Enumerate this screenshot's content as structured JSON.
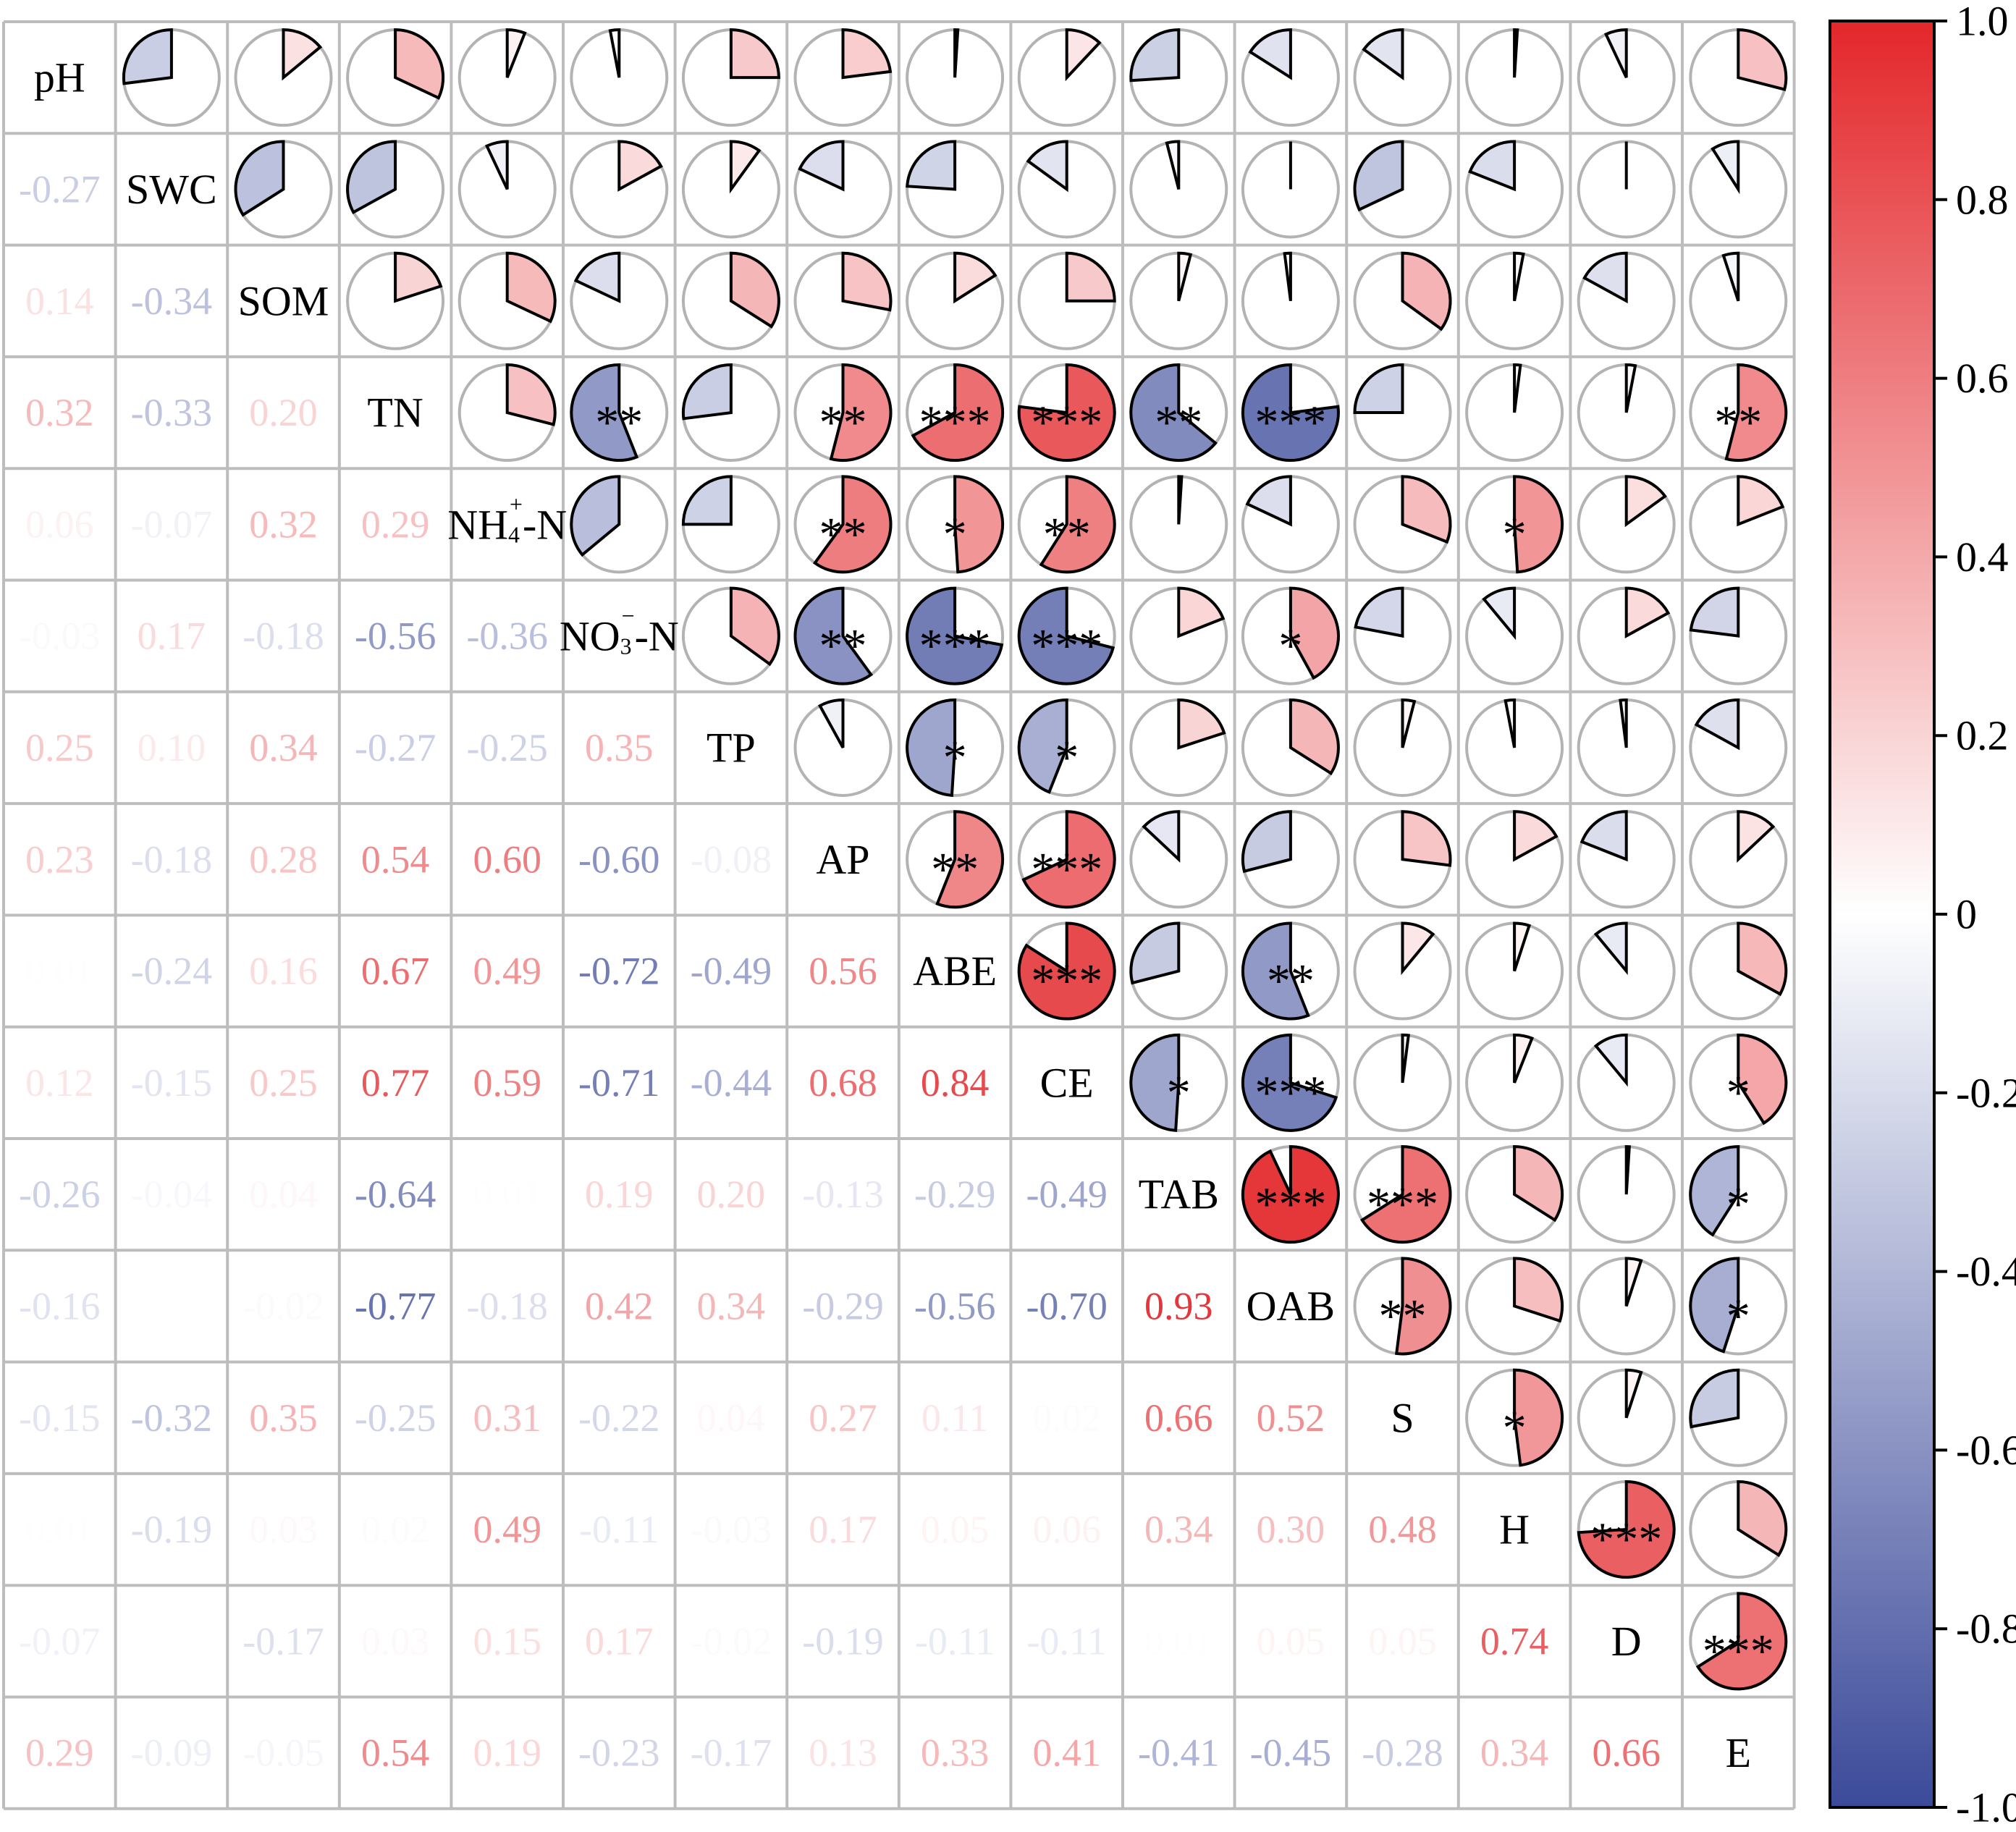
{
  "chart_data": {
    "type": "heatmap",
    "variables": [
      "pH",
      "SWC",
      "SOM",
      "TN",
      "NH4+-N",
      "NO3--N",
      "TP",
      "AP",
      "ABE",
      "CE",
      "TAB",
      "OAB",
      "S",
      "H",
      "D",
      "E"
    ],
    "correlation_matrix": [
      [
        null,
        -0.27,
        0.14,
        0.32,
        0.06,
        -0.03,
        0.25,
        0.23,
        0.01,
        0.12,
        -0.26,
        -0.16,
        -0.15,
        0.01,
        -0.07,
        0.29
      ],
      [
        -0.27,
        null,
        -0.34,
        -0.33,
        -0.07,
        0.17,
        0.1,
        -0.18,
        -0.24,
        -0.15,
        -0.04,
        0.0,
        -0.32,
        -0.19,
        0.0,
        -0.09
      ],
      [
        0.14,
        -0.34,
        null,
        0.2,
        0.32,
        -0.18,
        0.34,
        0.28,
        0.16,
        0.25,
        0.04,
        -0.02,
        0.35,
        0.03,
        -0.17,
        -0.05
      ],
      [
        0.32,
        -0.33,
        0.2,
        null,
        0.29,
        -0.56,
        -0.27,
        0.54,
        0.67,
        0.77,
        -0.64,
        -0.77,
        -0.25,
        0.02,
        0.03,
        0.54
      ],
      [
        0.06,
        -0.07,
        0.32,
        0.29,
        null,
        -0.36,
        -0.25,
        0.6,
        0.49,
        0.59,
        0.01,
        -0.18,
        0.31,
        0.49,
        0.15,
        0.19
      ],
      [
        -0.03,
        0.17,
        -0.18,
        -0.56,
        -0.36,
        null,
        0.35,
        -0.6,
        -0.72,
        -0.71,
        0.19,
        0.42,
        -0.22,
        -0.11,
        0.17,
        -0.23
      ],
      [
        0.25,
        0.1,
        0.34,
        -0.27,
        -0.25,
        0.35,
        null,
        -0.08,
        -0.49,
        -0.44,
        0.2,
        0.34,
        0.04,
        -0.03,
        -0.02,
        -0.17
      ],
      [
        0.23,
        -0.18,
        0.28,
        0.54,
        0.6,
        -0.6,
        -0.08,
        null,
        0.56,
        0.68,
        -0.13,
        -0.29,
        0.27,
        0.17,
        -0.19,
        0.13
      ],
      [
        0.01,
        -0.24,
        0.16,
        0.67,
        0.49,
        -0.72,
        -0.49,
        0.56,
        null,
        0.84,
        -0.29,
        -0.56,
        0.11,
        0.05,
        -0.11,
        0.33
      ],
      [
        0.12,
        -0.15,
        0.25,
        0.77,
        0.59,
        -0.71,
        -0.44,
        0.68,
        0.84,
        null,
        -0.49,
        -0.7,
        0.02,
        0.06,
        -0.11,
        0.41
      ],
      [
        -0.26,
        -0.04,
        0.04,
        -0.64,
        0.01,
        0.19,
        0.2,
        -0.13,
        -0.29,
        -0.49,
        null,
        0.93,
        0.66,
        0.34,
        0.01,
        -0.41
      ],
      [
        -0.16,
        0.0,
        -0.02,
        -0.77,
        -0.18,
        0.42,
        0.34,
        -0.29,
        -0.56,
        -0.7,
        0.93,
        null,
        0.52,
        0.3,
        0.05,
        -0.45
      ],
      [
        -0.15,
        -0.32,
        0.35,
        -0.25,
        0.31,
        -0.22,
        0.04,
        0.27,
        0.11,
        0.02,
        0.66,
        0.52,
        null,
        0.48,
        0.05,
        -0.28
      ],
      [
        0.01,
        -0.19,
        0.03,
        0.02,
        0.49,
        -0.11,
        -0.03,
        0.17,
        0.05,
        0.06,
        0.34,
        0.3,
        0.48,
        null,
        0.74,
        0.34
      ],
      [
        -0.07,
        0.0,
        -0.17,
        0.03,
        0.15,
        0.17,
        -0.02,
        -0.19,
        -0.11,
        -0.11,
        0.01,
        0.05,
        0.05,
        0.74,
        null,
        0.66
      ],
      [
        0.29,
        -0.09,
        -0.05,
        0.54,
        0.19,
        -0.23,
        -0.17,
        0.13,
        0.33,
        0.41,
        -0.41,
        -0.45,
        -0.28,
        0.34,
        0.66,
        null
      ]
    ],
    "significance": [
      {
        "row": 3,
        "col": 5,
        "label": "**"
      },
      {
        "row": 3,
        "col": 7,
        "label": "**"
      },
      {
        "row": 3,
        "col": 8,
        "label": "***"
      },
      {
        "row": 3,
        "col": 9,
        "label": "***"
      },
      {
        "row": 3,
        "col": 10,
        "label": "**"
      },
      {
        "row": 3,
        "col": 11,
        "label": "***"
      },
      {
        "row": 3,
        "col": 15,
        "label": "**"
      },
      {
        "row": 4,
        "col": 7,
        "label": "**"
      },
      {
        "row": 4,
        "col": 8,
        "label": "*"
      },
      {
        "row": 4,
        "col": 9,
        "label": "**"
      },
      {
        "row": 4,
        "col": 13,
        "label": "*"
      },
      {
        "row": 5,
        "col": 7,
        "label": "**"
      },
      {
        "row": 5,
        "col": 8,
        "label": "***"
      },
      {
        "row": 5,
        "col": 9,
        "label": "***"
      },
      {
        "row": 5,
        "col": 11,
        "label": "*"
      },
      {
        "row": 6,
        "col": 8,
        "label": "*"
      },
      {
        "row": 6,
        "col": 9,
        "label": "*"
      },
      {
        "row": 7,
        "col": 8,
        "label": "**"
      },
      {
        "row": 7,
        "col": 9,
        "label": "***"
      },
      {
        "row": 8,
        "col": 9,
        "label": "***"
      },
      {
        "row": 8,
        "col": 11,
        "label": "**"
      },
      {
        "row": 9,
        "col": 10,
        "label": "*"
      },
      {
        "row": 9,
        "col": 11,
        "label": "***"
      },
      {
        "row": 9,
        "col": 15,
        "label": "*"
      },
      {
        "row": 10,
        "col": 11,
        "label": "***"
      },
      {
        "row": 10,
        "col": 12,
        "label": "***"
      },
      {
        "row": 10,
        "col": 15,
        "label": "*"
      },
      {
        "row": 11,
        "col": 12,
        "label": "**"
      },
      {
        "row": 11,
        "col": 15,
        "label": "*"
      },
      {
        "row": 12,
        "col": 13,
        "label": "*"
      },
      {
        "row": 13,
        "col": 14,
        "label": "***"
      },
      {
        "row": 14,
        "col": 15,
        "label": "***"
      }
    ],
    "colorbar": {
      "range": [
        -1.0,
        1.0
      ],
      "ticks": [
        1.0,
        0.8,
        0.6,
        0.4,
        0.2,
        0,
        -0.2,
        -0.4,
        -0.6,
        -0.8,
        -1.0
      ],
      "tick_labels": [
        "1.0",
        "0.8",
        "0.6",
        "0.4",
        "0.2",
        "0",
        "-0.2",
        "-0.4",
        "-0.6",
        "-0.8",
        "-1.0"
      ],
      "colors": {
        "negative": "#3b4a9a",
        "zero": "#ffffff",
        "positive": "#e3272b"
      }
    },
    "upper_triangle": "pie",
    "lower_triangle": "number",
    "grid": true
  }
}
